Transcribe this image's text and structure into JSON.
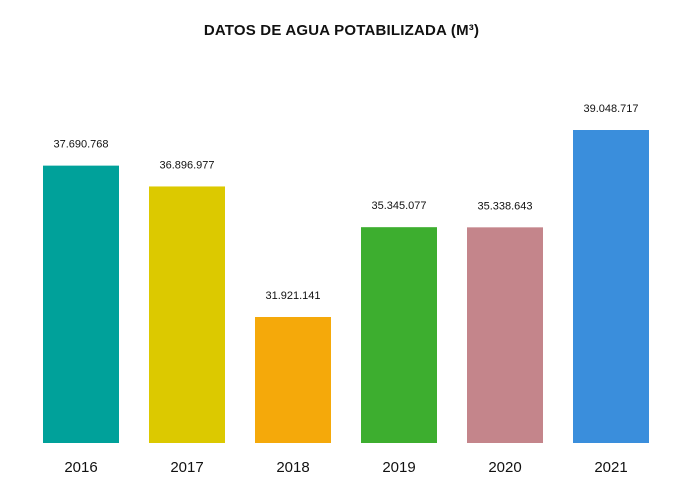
{
  "chart_data": {
    "type": "bar",
    "title": "DATOS DE AGUA POTABILIZADA (M³)",
    "xlabel": "",
    "ylabel": "",
    "categories": [
      "2016",
      "2017",
      "2018",
      "2019",
      "2020",
      "2021"
    ],
    "values": [
      37690768,
      36896977,
      31921141,
      35345077,
      35338643,
      39048717
    ],
    "value_labels": [
      "37.690.768",
      "36.896.977",
      "31.921.141",
      "35.345.077",
      "35.338.643",
      "39.048.717"
    ],
    "colors": [
      "#00A19A",
      "#DCC900",
      "#F5A90A",
      "#3DAE2F",
      "#C4858B",
      "#3A8EDC"
    ],
    "grid": false,
    "legend": "none"
  }
}
